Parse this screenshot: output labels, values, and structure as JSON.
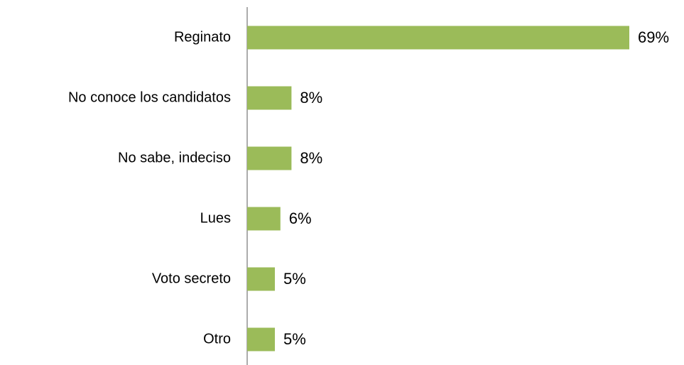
{
  "chart_data": {
    "type": "bar",
    "orientation": "horizontal",
    "categories": [
      "Reginato",
      "No conoce los candidatos",
      "No sabe, indeciso",
      "Lues",
      "Voto secreto",
      "Otro"
    ],
    "values": [
      69,
      8,
      8,
      6,
      5,
      5
    ],
    "value_labels": [
      "69%",
      "8%",
      "8%",
      "6%",
      "5%",
      "5%"
    ],
    "color": "#9bbb59"
  }
}
